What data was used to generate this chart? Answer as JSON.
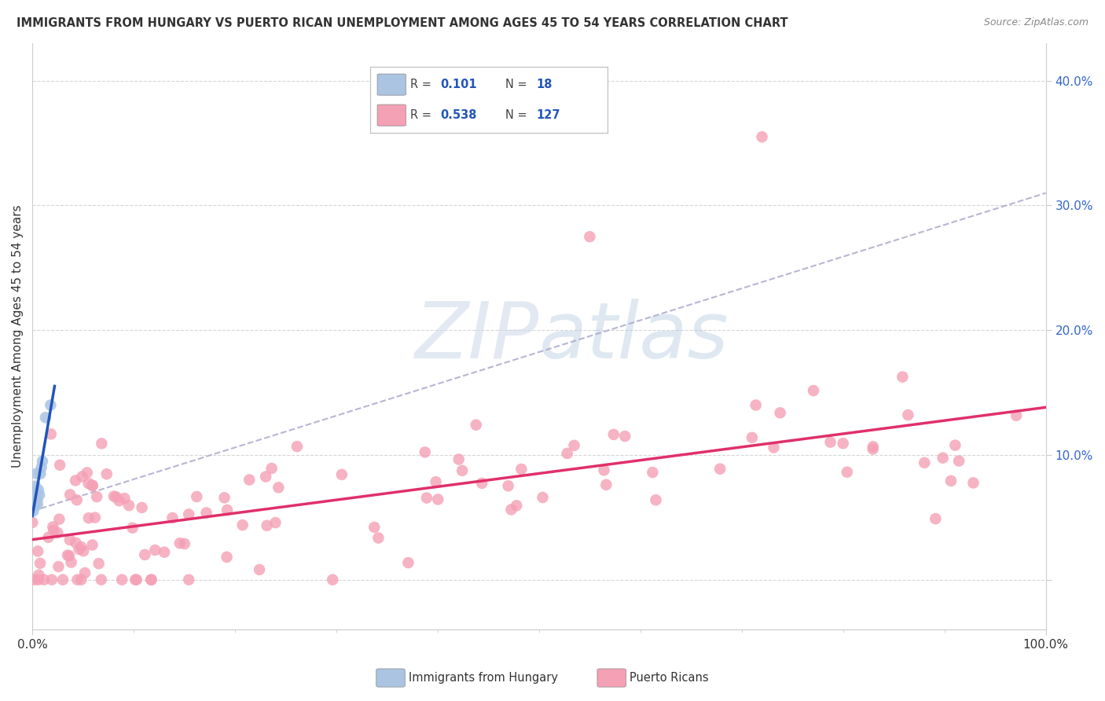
{
  "title": "IMMIGRANTS FROM HUNGARY VS PUERTO RICAN UNEMPLOYMENT AMONG AGES 45 TO 54 YEARS CORRELATION CHART",
  "source": "Source: ZipAtlas.com",
  "ylabel": "Unemployment Among Ages 45 to 54 years",
  "xlim": [
    0.0,
    1.0
  ],
  "ylim": [
    -0.04,
    0.43
  ],
  "blue_R": "0.101",
  "blue_N": "18",
  "pink_R": "0.538",
  "pink_N": "127",
  "blue_color": "#aac4e2",
  "pink_color": "#f4a0b5",
  "blue_line_color": "#2255bb",
  "pink_line_color": "#e0306a",
  "dashed_line_color": "#aaaacc",
  "watermark_color": "#ccd8e8",
  "title_color": "#333333",
  "source_color": "#888888",
  "ylabel_color": "#333333",
  "tick_label_color_y": "#3366cc",
  "tick_label_color_x": "#333333",
  "grid_color": "#cccccc"
}
